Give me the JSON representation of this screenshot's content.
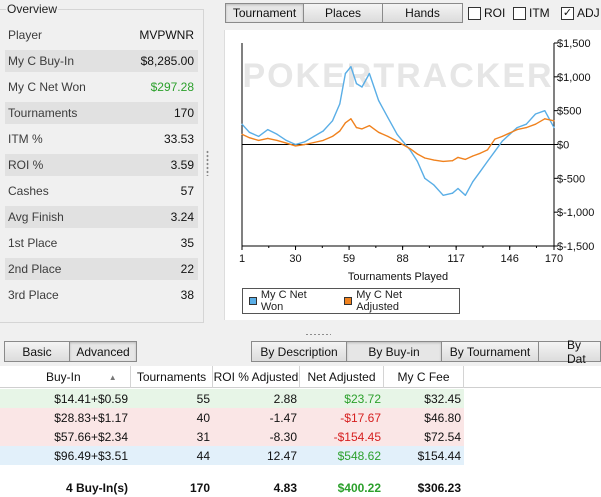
{
  "overview": {
    "title": "Overview",
    "rows": [
      {
        "label": "Player",
        "value": "MVPWNR"
      },
      {
        "label": "My C Buy-In",
        "value": "$8,285.00"
      },
      {
        "label": "My C Net Won",
        "value": "$297.28"
      },
      {
        "label": "Tournaments",
        "value": "170"
      },
      {
        "label": "ITM %",
        "value": "33.53"
      },
      {
        "label": "ROI %",
        "value": "3.59"
      },
      {
        "label": "Cashes",
        "value": "57"
      },
      {
        "label": "Avg Finish",
        "value": "3.24"
      },
      {
        "label": "1st Place",
        "value": "35"
      },
      {
        "label": "2nd Place",
        "value": "22"
      },
      {
        "label": "3rd Place",
        "value": "38"
      }
    ],
    "net_won_color": "#2ca02c"
  },
  "top_tabs": [
    "Tournament",
    "Places",
    "Hands"
  ],
  "top_checks": [
    {
      "label": "ROI",
      "checked": false
    },
    {
      "label": "ITM",
      "checked": false
    },
    {
      "label": "ADJ",
      "checked": true
    }
  ],
  "chart_data": {
    "type": "line",
    "watermark": "POKERTRACKER",
    "xlabel": "Tournaments Played",
    "ylabel": "",
    "xlim": [
      1,
      170
    ],
    "ylim": [
      -1500,
      1500
    ],
    "x_ticks": [
      "1",
      "30",
      "59",
      "88",
      "117",
      "146",
      "170"
    ],
    "y_ticks": [
      "$1,500",
      "$1,000",
      "$500",
      "$0",
      "$-500",
      "$-1,000",
      "$-1,500"
    ],
    "legend_position": "bottom-left",
    "series": [
      {
        "name": "My C Net Won",
        "color": "#5aaee6",
        "x": [
          1,
          5,
          10,
          15,
          20,
          25,
          30,
          35,
          40,
          45,
          50,
          54,
          57,
          60,
          63,
          66,
          70,
          75,
          80,
          85,
          88,
          92,
          96,
          100,
          105,
          110,
          115,
          118,
          122,
          126,
          130,
          134,
          138,
          142,
          146,
          150,
          155,
          160,
          165,
          170
        ],
        "y": [
          300,
          180,
          120,
          220,
          150,
          60,
          0,
          40,
          120,
          200,
          350,
          600,
          1050,
          1150,
          900,
          850,
          1050,
          650,
          400,
          150,
          50,
          -80,
          -250,
          -500,
          -600,
          -750,
          -720,
          -650,
          -750,
          -550,
          -400,
          -250,
          -100,
          50,
          150,
          250,
          300,
          450,
          500,
          250
        ]
      },
      {
        "name": "My C Net Adjusted",
        "color": "#f0821e",
        "x": [
          1,
          5,
          10,
          15,
          20,
          25,
          30,
          35,
          40,
          45,
          50,
          54,
          57,
          60,
          63,
          66,
          70,
          75,
          80,
          85,
          88,
          92,
          96,
          100,
          105,
          110,
          115,
          118,
          122,
          126,
          130,
          134,
          138,
          142,
          146,
          150,
          155,
          160,
          165,
          170
        ],
        "y": [
          150,
          100,
          60,
          90,
          60,
          20,
          -20,
          0,
          30,
          60,
          120,
          200,
          320,
          380,
          250,
          230,
          280,
          180,
          120,
          50,
          0,
          -60,
          -140,
          -200,
          -230,
          -250,
          -240,
          -190,
          -220,
          -170,
          -130,
          -80,
          80,
          120,
          170,
          220,
          250,
          300,
          380,
          350
        ]
      }
    ]
  },
  "legend": [
    "My C Net Won",
    "My C Net Adjusted"
  ],
  "bottom_tabs_left": [
    "Basic",
    "Advanced"
  ],
  "bottom_tabs_right": [
    "By Description",
    "By Buy-in",
    "By Tournament",
    "By Dat"
  ],
  "table": {
    "columns": [
      "Buy-In",
      "Tournaments",
      "ROI % Adjusted",
      "Net Adjusted",
      "My C Fee"
    ],
    "rows": [
      {
        "buyin": "$14.41+$0.59",
        "tournaments": "55",
        "roi": "2.88",
        "net": "$23.72",
        "fee": "$32.45",
        "tone": "pos",
        "bg": "#e7f5e7"
      },
      {
        "buyin": "$28.83+$1.17",
        "tournaments": "40",
        "roi": "-1.47",
        "net": "-$17.67",
        "fee": "$46.80",
        "tone": "neg",
        "bg": "#fae6e6"
      },
      {
        "buyin": "$57.66+$2.34",
        "tournaments": "31",
        "roi": "-8.30",
        "net": "-$154.45",
        "fee": "$72.54",
        "tone": "neg",
        "bg": "#fae6e6"
      },
      {
        "buyin": "$96.49+$3.51",
        "tournaments": "44",
        "roi": "12.47",
        "net": "$548.62",
        "fee": "$154.44",
        "tone": "pos",
        "bg": "#e2f0fa"
      }
    ],
    "totals": {
      "buyin": "4 Buy-In(s)",
      "tournaments": "170",
      "roi": "4.83",
      "net": "$400.22",
      "fee": "$306.23"
    }
  }
}
